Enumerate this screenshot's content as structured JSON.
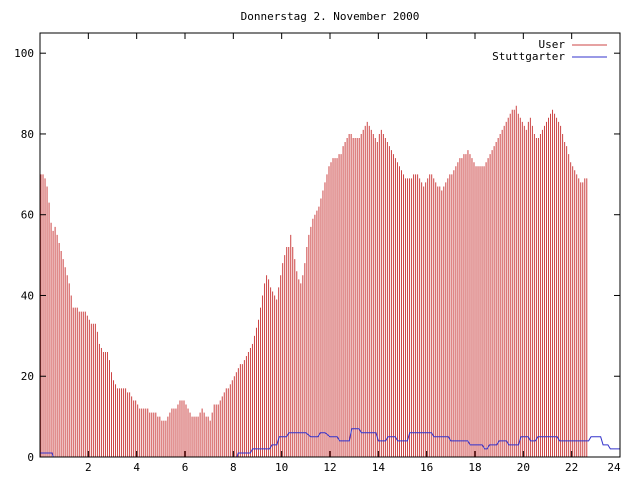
{
  "chart_data": {
    "type": "bar",
    "title": "Donnerstag 2. November 2000",
    "xlabel": "",
    "ylabel": "",
    "xlim": [
      0,
      24
    ],
    "ylim": [
      0,
      105
    ],
    "x_ticks": [
      2,
      4,
      6,
      8,
      10,
      12,
      14,
      16,
      18,
      20,
      22,
      24
    ],
    "y_ticks": [
      0,
      20,
      40,
      60,
      80,
      100
    ],
    "legend_position": "top-right",
    "series": [
      {
        "name": "User",
        "style": "impulses",
        "color": "#cc4444",
        "points_per_hour": 12,
        "values": [
          70,
          70,
          69,
          67,
          63,
          58,
          56,
          57,
          55,
          53,
          51,
          49,
          47,
          45,
          43,
          40,
          37,
          37,
          37,
          36,
          36,
          36,
          36,
          35,
          34,
          33,
          33,
          33,
          31,
          28,
          27,
          26,
          26,
          26,
          24,
          21,
          19,
          18,
          17,
          17,
          17,
          17,
          17,
          16,
          16,
          15,
          14,
          14,
          13,
          12,
          12,
          12,
          12,
          12,
          11,
          11,
          11,
          11,
          10,
          10,
          9,
          9,
          9,
          10,
          11,
          12,
          12,
          12,
          13,
          14,
          14,
          14,
          13,
          12,
          11,
          10,
          10,
          10,
          10,
          11,
          12,
          11,
          10,
          10,
          9,
          11,
          13,
          13,
          13,
          14,
          15,
          16,
          17,
          17,
          18,
          19,
          20,
          21,
          22,
          23,
          23,
          24,
          25,
          26,
          27,
          28,
          30,
          32,
          34,
          37,
          40,
          43,
          45,
          44,
          42,
          41,
          40,
          39,
          42,
          45,
          48,
          50,
          52,
          52,
          55,
          52,
          49,
          46,
          44,
          43,
          45,
          48,
          52,
          55,
          57,
          59,
          60,
          61,
          62,
          64,
          66,
          68,
          70,
          72,
          73,
          74,
          74,
          74,
          75,
          75,
          77,
          78,
          79,
          80,
          80,
          79,
          79,
          79,
          79,
          80,
          81,
          82,
          83,
          82,
          81,
          80,
          79,
          78,
          80,
          81,
          80,
          79,
          78,
          77,
          76,
          75,
          74,
          73,
          72,
          71,
          70,
          69,
          69,
          69,
          69,
          70,
          70,
          70,
          69,
          68,
          67,
          68,
          69,
          70,
          70,
          69,
          68,
          67,
          67,
          66,
          67,
          68,
          69,
          70,
          70,
          71,
          72,
          73,
          74,
          74,
          75,
          75,
          76,
          75,
          74,
          73,
          72,
          72,
          72,
          72,
          72,
          73,
          74,
          75,
          76,
          77,
          78,
          79,
          80,
          81,
          82,
          83,
          84,
          85,
          86,
          86,
          87,
          85,
          84,
          83,
          82,
          81,
          83,
          84,
          82,
          80,
          79,
          79,
          80,
          81,
          82,
          83,
          84,
          85,
          86,
          85,
          84,
          83,
          82,
          80,
          78,
          77,
          75,
          73,
          72,
          71,
          70,
          69,
          68,
          68,
          69,
          69
        ]
      },
      {
        "name": "Stuttgarter",
        "style": "line",
        "color": "#3333cc",
        "x": [
          0,
          0.5,
          0.55,
          8.15,
          8.2,
          8.7,
          8.8,
          9.5,
          9.6,
          9.8,
          9.9,
          10.2,
          10.3,
          11.0,
          11.2,
          11.5,
          11.6,
          11.8,
          12.0,
          12.3,
          12.4,
          12.8,
          12.9,
          13.2,
          13.3,
          13.9,
          14.0,
          14.3,
          14.4,
          14.7,
          14.8,
          15.2,
          15.3,
          16.2,
          16.3,
          16.9,
          17.0,
          17.7,
          17.8,
          18.3,
          18.4,
          18.5,
          18.6,
          18.9,
          19.0,
          19.3,
          19.4,
          19.8,
          19.9,
          20.2,
          20.3,
          20.5,
          20.6,
          21.4,
          21.5,
          22.7,
          22.8,
          23.2,
          23.3,
          23.5,
          23.6,
          24.0
        ],
        "values": [
          1,
          1,
          0,
          0,
          1,
          1,
          2,
          2,
          3,
          3,
          5,
          5,
          6,
          6,
          5,
          5,
          6,
          6,
          5,
          5,
          4,
          4,
          7,
          7,
          6,
          6,
          4,
          4,
          5,
          5,
          4,
          4,
          6,
          6,
          5,
          5,
          4,
          4,
          3,
          3,
          2,
          2,
          3,
          3,
          4,
          4,
          3,
          3,
          5,
          5,
          4,
          4,
          5,
          5,
          4,
          4,
          5,
          5,
          3,
          3,
          2,
          2
        ]
      }
    ]
  }
}
